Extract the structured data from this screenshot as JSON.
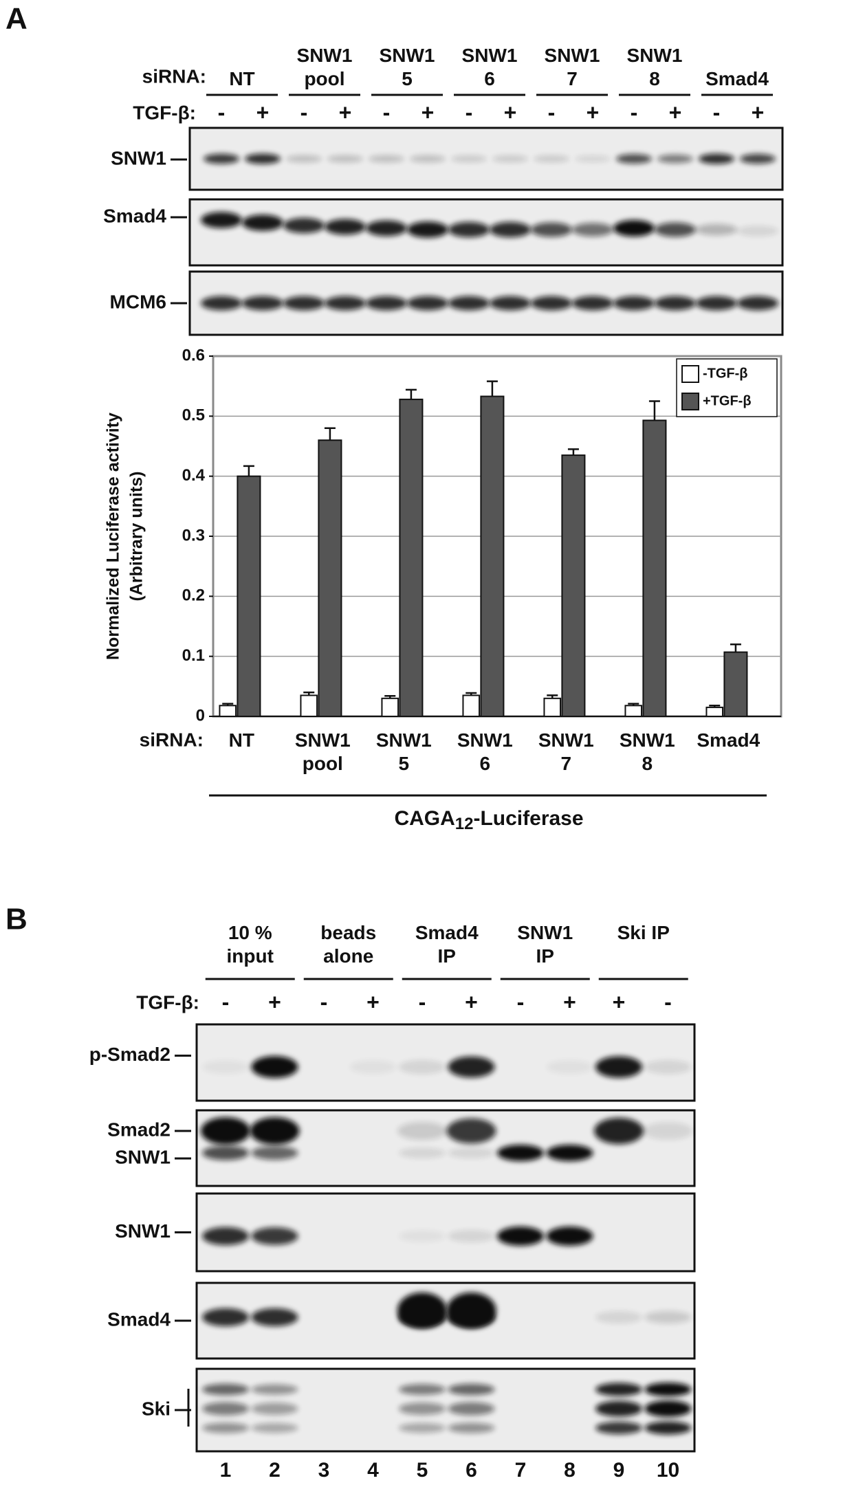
{
  "panel_a": {
    "label": "A",
    "sirna_label": "siRNA:",
    "groups": [
      "NT",
      "SNW1 pool",
      "SNW1 5",
      "SNW1 6",
      "SNW1 7",
      "SNW1 8",
      "Smad4"
    ],
    "tgf_label": "TGF-β:",
    "tgf_signs": [
      "-",
      "+",
      "-",
      "+",
      "-",
      "+",
      "-",
      "+",
      "-",
      "+",
      "-",
      "+",
      "-",
      "+"
    ],
    "blots": [
      "SNW1",
      "Smad4",
      "MCM6"
    ]
  },
  "chart_data": {
    "type": "bar",
    "y_label": [
      "Normalized Luciferase activity",
      "(Arbitrary units)"
    ],
    "x_label": "siRNA:",
    "categories": [
      "NT",
      "SNW1 pool",
      "SNW1 5",
      "SNW1 6",
      "SNW1 7",
      "SNW1 8",
      "Smad4"
    ],
    "series": [
      {
        "name": "-TGF-β",
        "color": "#ffffff",
        "values": [
          0.018,
          0.035,
          0.03,
          0.035,
          0.03,
          0.018,
          0.015
        ],
        "errors": [
          0.003,
          0.005,
          0.004,
          0.004,
          0.005,
          0.003,
          0.003
        ]
      },
      {
        "name": "+TGF-β",
        "color": "#555555",
        "values": [
          0.4,
          0.46,
          0.528,
          0.533,
          0.435,
          0.493,
          0.107
        ],
        "errors": [
          0.017,
          0.02,
          0.016,
          0.025,
          0.01,
          0.032,
          0.013
        ]
      }
    ],
    "ylim": [
      0,
      0.6
    ],
    "yticks": [
      0,
      0.1,
      0.2,
      0.3,
      0.4,
      0.5,
      0.6
    ],
    "grid": true,
    "legend": "upper right",
    "reporter": {
      "base": "CAGA",
      "sub": "12",
      "rest": "-Luciferase"
    }
  },
  "panel_b": {
    "label": "B",
    "groups": [
      "10 % input",
      "beads alone",
      "Smad4 IP",
      "SNW1 IP",
      "Ski IP"
    ],
    "tgf_label": "TGF-β:",
    "tgf_signs": [
      "-",
      "+",
      "-",
      "+",
      "-",
      "+",
      "-",
      "+",
      "+",
      "-"
    ],
    "blots": [
      [
        "p-Smad2"
      ],
      [
        "Smad2",
        "SNW1"
      ],
      [
        "SNW1"
      ],
      [
        "Smad4"
      ],
      [
        "Ski"
      ]
    ],
    "lanes": [
      "1",
      "2",
      "3",
      "4",
      "5",
      "6",
      "7",
      "8",
      "9",
      "10"
    ]
  }
}
